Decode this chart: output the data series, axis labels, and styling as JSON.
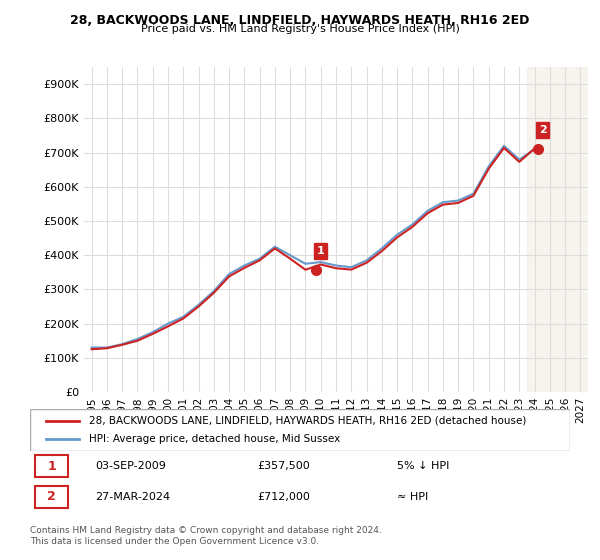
{
  "title": "28, BACKWOODS LANE, LINDFIELD, HAYWARDS HEATH, RH16 2ED",
  "subtitle": "Price paid vs. HM Land Registry's House Price Index (HPI)",
  "ylabel": "",
  "ylim": [
    0,
    950000
  ],
  "yticks": [
    0,
    100000,
    200000,
    300000,
    400000,
    500000,
    600000,
    700000,
    800000,
    900000
  ],
  "ytick_labels": [
    "£0",
    "£100K",
    "£200K",
    "£300K",
    "£400K",
    "£500K",
    "£600K",
    "£700K",
    "£800K",
    "£900K"
  ],
  "hpi_color": "#6699cc",
  "price_color": "#cc2222",
  "marker_color_1": "#cc2222",
  "marker_color_2": "#cc2222",
  "annotation_box_color": "#cc2222",
  "background_color": "#ffffff",
  "grid_color": "#dddddd",
  "legend_label_house": "28, BACKWOODS LANE, LINDFIELD, HAYWARDS HEATH, RH16 2ED (detached house)",
  "legend_label_hpi": "HPI: Average price, detached house, Mid Sussex",
  "sale1_label": "1",
  "sale1_date": "03-SEP-2009",
  "sale1_price": "£357,500",
  "sale1_vs": "5% ↓ HPI",
  "sale2_label": "2",
  "sale2_date": "27-MAR-2024",
  "sale2_price": "£712,000",
  "sale2_vs": "≈ HPI",
  "footer": "Contains HM Land Registry data © Crown copyright and database right 2024.\nThis data is licensed under the Open Government Licence v3.0.",
  "hpi_years": [
    1995,
    1996,
    1997,
    1998,
    1999,
    2000,
    2001,
    2002,
    2003,
    2004,
    2005,
    2006,
    2007,
    2008,
    2009,
    2010,
    2011,
    2012,
    2013,
    2014,
    2015,
    2016,
    2017,
    2018,
    2019,
    2020,
    2021,
    2022,
    2023,
    2024,
    2025,
    2026,
    2027
  ],
  "hpi_values": [
    130000,
    130000,
    140000,
    155000,
    175000,
    200000,
    220000,
    255000,
    295000,
    345000,
    370000,
    390000,
    425000,
    400000,
    375000,
    380000,
    370000,
    365000,
    385000,
    420000,
    460000,
    490000,
    530000,
    555000,
    560000,
    580000,
    660000,
    720000,
    680000,
    710000,
    null,
    null,
    null
  ],
  "house_years": [
    1995,
    1996,
    1997,
    1998,
    1999,
    2000,
    2001,
    2002,
    2003,
    2004,
    2005,
    2006,
    2007,
    2008,
    2009,
    2010,
    2011,
    2012,
    2013,
    2014,
    2015,
    2016,
    2017,
    2018,
    2019,
    2020,
    2021,
    2022,
    2023,
    2024
  ],
  "house_values": [
    125000,
    128000,
    138000,
    150000,
    170000,
    192000,
    215000,
    250000,
    290000,
    338000,
    363000,
    385000,
    420000,
    390000,
    357500,
    373000,
    362000,
    358000,
    378000,
    412000,
    452000,
    483000,
    523000,
    548000,
    553000,
    574000,
    653000,
    714000,
    673000,
    712000
  ],
  "sale1_x": 2009.67,
  "sale1_y": 357500,
  "sale2_x": 2024.23,
  "sale2_y": 712000,
  "xtick_years": [
    1995,
    1996,
    1997,
    1998,
    1999,
    2000,
    2001,
    2002,
    2003,
    2004,
    2005,
    2006,
    2007,
    2008,
    2009,
    2010,
    2011,
    2012,
    2013,
    2014,
    2015,
    2016,
    2017,
    2018,
    2019,
    2020,
    2021,
    2022,
    2023,
    2024,
    2025,
    2026,
    2027
  ],
  "shade_start": 2023.5,
  "shade_end": 2027.5
}
